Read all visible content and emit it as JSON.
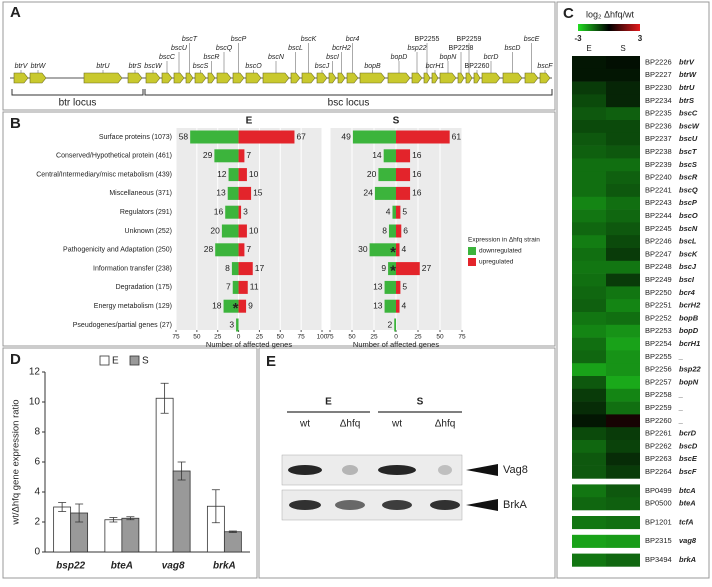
{
  "gene_map": {
    "label": "A",
    "genes": [
      "btrV",
      "btrW",
      "btrU",
      "btrS",
      "bscW",
      "bscC",
      "bscU",
      "bscT",
      "bscS",
      "bscR",
      "bscQ",
      "bscP",
      "bscO",
      "bscN",
      "bscL",
      "bscK",
      "bscJ",
      "bscI",
      "bcrH2",
      "bcr4",
      "bopB",
      "bopD",
      "bsp22",
      "BP2255",
      "bcrH1",
      "bopN",
      "BP2258",
      "BP2259",
      "BP2260",
      "bcrD",
      "bscD",
      "bscE",
      "bscF"
    ],
    "loci": [
      "btr locus",
      "bsc locus"
    ]
  },
  "chart_data": [
    {
      "type": "diverging",
      "label": "B",
      "categories": [
        "Surface proteins (1073)",
        "Conserved/Hypothetical protein (461)",
        "Central/Intermediary/misc metabolism (439)",
        "Miscellaneous (371)",
        "Regulators (291)",
        "Unknown (252)",
        "Pathogenicity and Adaptation (250)",
        "Information transfer (238)",
        "Degradation (175)",
        "Energy metabolism (129)",
        "Pseudogenes/partial genes (27)"
      ],
      "legend": {
        "title": "Expression in Δhfq strain",
        "entries": [
          {
            "name": "downregulated",
            "color": "#3cb43c"
          },
          {
            "name": "upregulated",
            "color": "#e3242b"
          }
        ]
      },
      "grid": true,
      "panels": [
        {
          "title": "E",
          "xlabel": "Number of affected genes",
          "xlim": [
            -75,
            100
          ],
          "xticks": [
            {
              "value": -75,
              "label": "75"
            },
            {
              "value": -50,
              "label": "50"
            },
            {
              "value": -25,
              "label": "25"
            },
            0,
            25,
            50,
            75,
            100
          ],
          "series": [
            {
              "values": [
                -58,
                -29,
                -12,
                -13,
                -16,
                -20,
                -28,
                -8,
                -7,
                -18,
                -3
              ],
              "value_labels": [
                "58",
                "29",
                "12",
                "13",
                "16",
                "20",
                "28",
                "8",
                "7",
                "18",
                "3"
              ]
            },
            {
              "values": [
                67,
                7,
                10,
                15,
                3,
                10,
                7,
                17,
                11,
                9,
                null
              ]
            }
          ],
          "annotations": [
            {
              "text": "*",
              "category": "Energy metabolism (129)"
            }
          ]
        },
        {
          "title": "S",
          "xlabel": "Number of affected genes",
          "xlim": [
            -75,
            75
          ],
          "xticks": [
            {
              "value": -75,
              "label": "75"
            },
            {
              "value": -50,
              "label": "50"
            },
            {
              "value": -25,
              "label": "25"
            },
            0,
            25,
            50,
            75
          ],
          "series": [
            {
              "values": [
                -49,
                -14,
                -20,
                -24,
                -4,
                -8,
                -30,
                -9,
                -13,
                -13,
                -2
              ],
              "value_labels": [
                "49",
                "14",
                "20",
                "24",
                "4",
                "8",
                "30",
                "9",
                "13",
                "13",
                "2"
              ]
            },
            {
              "values": [
                61,
                16,
                16,
                16,
                5,
                6,
                4,
                27,
                5,
                4,
                null
              ]
            }
          ],
          "annotations": [
            {
              "text": "*",
              "category": "Pathogenicity and Adaptation (250)"
            },
            {
              "text": "*",
              "category": "Information transfer (238)"
            }
          ]
        }
      ]
    },
    {
      "type": "heatmap",
      "label": "C",
      "title": "log₂ Δhfq/wt",
      "zlim": [
        -3,
        3
      ],
      "zticks": [
        -3,
        3
      ],
      "colorscale": [
        "#22dd22",
        "#000000",
        "#e31a1c"
      ],
      "columns": [
        "E",
        "S"
      ],
      "groups": [
        {
          "rows": [
            {
              "id": "BP2226",
              "name": "btrV",
              "values": [
                -0.3,
                -0.2
              ]
            },
            {
              "id": "BP2227",
              "name": "btrW",
              "values": [
                -0.3,
                -0.3
              ]
            },
            {
              "id": "BP2230",
              "name": "btrU",
              "values": [
                -0.8,
                -0.5
              ]
            },
            {
              "id": "BP2234",
              "name": "btrS",
              "values": [
                -1.0,
                -0.5
              ]
            },
            {
              "id": "BP2235",
              "name": "bscC",
              "values": [
                -1.2,
                -1.3
              ]
            },
            {
              "id": "BP2236",
              "name": "bscW",
              "values": [
                -1.0,
                -1.0
              ]
            },
            {
              "id": "BP2237",
              "name": "bscU",
              "values": [
                -1.2,
                -1.0
              ]
            },
            {
              "id": "BP2238",
              "name": "bscT",
              "values": [
                -1.3,
                -1.2
              ]
            },
            {
              "id": "BP2239",
              "name": "bscS",
              "values": [
                -1.5,
                -1.5
              ]
            },
            {
              "id": "BP2240",
              "name": "bscR",
              "values": [
                -1.5,
                -1.3
              ]
            },
            {
              "id": "BP2241",
              "name": "bscQ",
              "values": [
                -1.5,
                -1.2
              ]
            },
            {
              "id": "BP2243",
              "name": "bscP",
              "values": [
                -1.8,
                -1.5
              ]
            },
            {
              "id": "BP2244",
              "name": "bscO",
              "values": [
                -1.6,
                -1.4
              ]
            },
            {
              "id": "BP2245",
              "name": "bscN",
              "values": [
                -1.4,
                -1.2
              ]
            },
            {
              "id": "BP2246",
              "name": "bscL",
              "values": [
                -1.7,
                -1.0
              ]
            },
            {
              "id": "BP2247",
              "name": "bscK",
              "values": [
                -1.5,
                -0.8
              ]
            },
            {
              "id": "BP2248",
              "name": "bscJ",
              "values": [
                -1.6,
                -1.6
              ]
            },
            {
              "id": "BP2249",
              "name": "bscI",
              "values": [
                -1.5,
                -0.8
              ]
            },
            {
              "id": "BP2250",
              "name": "bcr4",
              "values": [
                -1.4,
                -1.6
              ]
            },
            {
              "id": "BP2251",
              "name": "bcrH2",
              "values": [
                -1.3,
                -1.8
              ]
            },
            {
              "id": "BP2252",
              "name": "bopB",
              "values": [
                -1.6,
                -1.5
              ]
            },
            {
              "id": "BP2253",
              "name": "bopD",
              "values": [
                -1.8,
                -2.0
              ]
            },
            {
              "id": "BP2254",
              "name": "bcrH1",
              "values": [
                -1.5,
                -2.2
              ]
            },
            {
              "id": "BP2255",
              "name": "_",
              "values": [
                -1.4,
                -2.0
              ]
            },
            {
              "id": "BP2256",
              "name": "bsp22",
              "values": [
                -2.2,
                -2.0
              ]
            },
            {
              "id": "BP2257",
              "name": "bopN",
              "values": [
                -1.2,
                -2.3
              ]
            },
            {
              "id": "BP2258",
              "name": "_",
              "values": [
                -0.8,
                -1.8
              ]
            },
            {
              "id": "BP2259",
              "name": "_",
              "values": [
                -0.6,
                -1.5
              ]
            },
            {
              "id": "BP2260",
              "name": "_",
              "values": [
                -0.3,
                0.3
              ]
            },
            {
              "id": "BP2261",
              "name": "bcrD",
              "values": [
                -1.0,
                -0.8
              ]
            },
            {
              "id": "BP2262",
              "name": "bscD",
              "values": [
                -1.4,
                -0.9
              ]
            },
            {
              "id": "BP2263",
              "name": "bscE",
              "values": [
                -1.2,
                -0.6
              ]
            },
            {
              "id": "BP2264",
              "name": "bscF",
              "values": [
                -1.2,
                -0.8
              ]
            }
          ]
        },
        {
          "rows": [
            {
              "id": "BP0499",
              "name": "btcA",
              "values": [
                -1.6,
                -1.2
              ]
            },
            {
              "id": "BP0500",
              "name": "bteA",
              "values": [
                -1.4,
                -1.3
              ]
            }
          ]
        },
        {
          "rows": [
            {
              "id": "BP1201",
              "name": "tcfA",
              "values": [
                -1.6,
                -1.5
              ]
            }
          ]
        },
        {
          "rows": [
            {
              "id": "BP2315",
              "name": "vag8",
              "values": [
                -2.2,
                -2.1
              ]
            }
          ]
        },
        {
          "rows": [
            {
              "id": "BP3494",
              "name": "brkA",
              "values": [
                -1.6,
                -1.4
              ]
            }
          ]
        }
      ]
    },
    {
      "type": "bar",
      "label": "D",
      "ylabel": "wt/Δhfq gene expression ratio",
      "categories": [
        "bsp22",
        "bteA",
        "vag8",
        "brkA"
      ],
      "series": [
        {
          "name": "E",
          "color": "#ffffff",
          "values": [
            3.0,
            2.15,
            10.25,
            3.05
          ],
          "errors": [
            0.3,
            0.15,
            1.0,
            1.1
          ]
        },
        {
          "name": "S",
          "color": "#999999",
          "values": [
            2.6,
            2.25,
            5.4,
            1.35
          ],
          "errors": [
            0.6,
            0.1,
            0.6,
            0.05
          ]
        }
      ],
      "ylim": [
        0,
        12
      ],
      "yticks": [
        0,
        2,
        4,
        6,
        8,
        10,
        12
      ]
    }
  ],
  "blot": {
    "label": "E",
    "groups": [
      {
        "name": "E",
        "lanes": [
          "wt",
          "Δhfq"
        ]
      },
      {
        "name": "S",
        "lanes": [
          "wt",
          "Δhfq"
        ]
      }
    ],
    "proteins": [
      "Vag8",
      "BrkA"
    ]
  }
}
